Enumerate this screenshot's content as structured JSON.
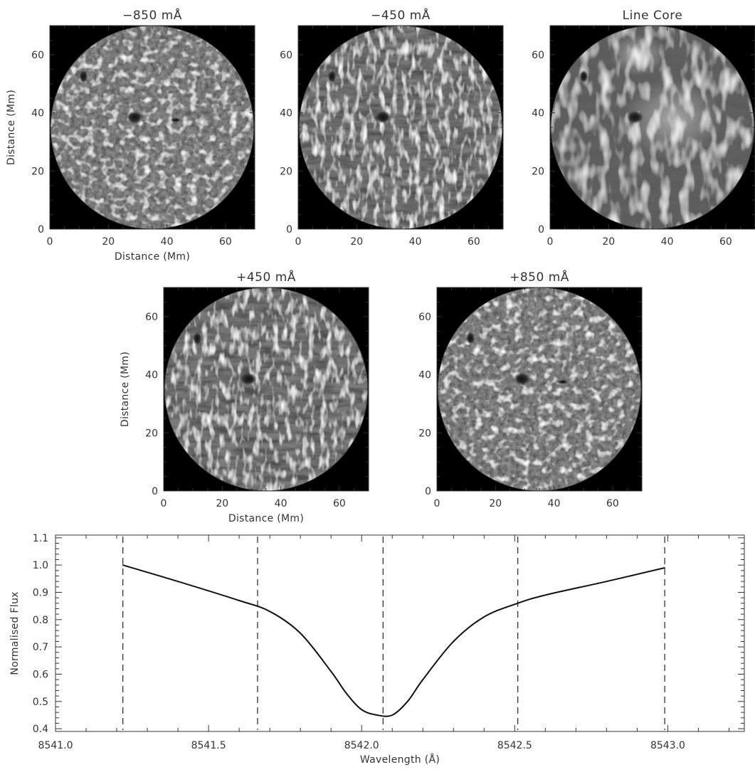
{
  "chart_data": [
    {
      "type": "image",
      "title": "−850 mÅ",
      "xlabel": "Distance (Mm)",
      "ylabel": "Distance (Mm)",
      "xlim": [
        0,
        70
      ],
      "ylim": [
        0,
        70
      ],
      "xticks": [
        "0",
        "20",
        "40",
        "60"
      ],
      "yticks": [
        "0",
        "20",
        "40",
        "60"
      ],
      "style": "granulation"
    },
    {
      "type": "image",
      "title": "−450 mÅ",
      "xlabel": "",
      "ylabel": "",
      "xlim": [
        0,
        70
      ],
      "ylim": [
        0,
        70
      ],
      "xticks": [
        "0",
        "20",
        "40",
        "60"
      ],
      "yticks": [
        "0",
        "20",
        "40",
        "60"
      ],
      "style": "fibrils"
    },
    {
      "type": "image",
      "title": "Line Core",
      "xlabel": "",
      "ylabel": "",
      "xlim": [
        0,
        70
      ],
      "ylim": [
        0,
        70
      ],
      "xticks": [
        "0",
        "20",
        "40",
        "60"
      ],
      "yticks": [
        "0",
        "20",
        "40",
        "60"
      ],
      "style": "core"
    },
    {
      "type": "image",
      "title": "+450 mÅ",
      "xlabel": "Distance (Mm)",
      "ylabel": "Distance (Mm)",
      "xlim": [
        0,
        70
      ],
      "ylim": [
        0,
        70
      ],
      "xticks": [
        "0",
        "20",
        "40",
        "60"
      ],
      "yticks": [
        "0",
        "20",
        "40",
        "60"
      ],
      "style": "fibrils"
    },
    {
      "type": "image",
      "title": "+850 mÅ",
      "xlabel": "",
      "ylabel": "",
      "xlim": [
        0,
        70
      ],
      "ylim": [
        0,
        70
      ],
      "xticks": [
        "0",
        "20",
        "40",
        "60"
      ],
      "yticks": [
        "0",
        "20",
        "40",
        "60"
      ],
      "style": "granulation"
    },
    {
      "type": "line",
      "title": "",
      "xlabel": "Wavelength (Å)",
      "ylabel": "Normalised Flux",
      "xlim": [
        8541.0,
        8543.25
      ],
      "ylim": [
        0.39,
        1.11
      ],
      "xticks": [
        "8541.0",
        "8541.5",
        "8542.0",
        "8542.5",
        "8543.0"
      ],
      "yticks": [
        "0.4",
        "0.5",
        "0.6",
        "0.7",
        "0.8",
        "0.9",
        "1.0",
        "1.1"
      ],
      "grid": false,
      "series": [
        {
          "x": [
            8541.22,
            8541.4,
            8541.6,
            8541.7,
            8541.8,
            8541.9,
            8541.95,
            8542.0,
            8542.05,
            8542.1,
            8542.15,
            8542.2,
            8542.3,
            8542.4,
            8542.51,
            8542.6,
            8542.8,
            8542.99
          ],
          "y": [
            1.0,
            0.94,
            0.87,
            0.83,
            0.75,
            0.61,
            0.53,
            0.47,
            0.45,
            0.45,
            0.5,
            0.58,
            0.72,
            0.81,
            0.86,
            0.89,
            0.94,
            0.99
          ]
        }
      ],
      "vlines": [
        8541.22,
        8541.66,
        8542.07,
        8542.51,
        8542.99
      ]
    }
  ]
}
